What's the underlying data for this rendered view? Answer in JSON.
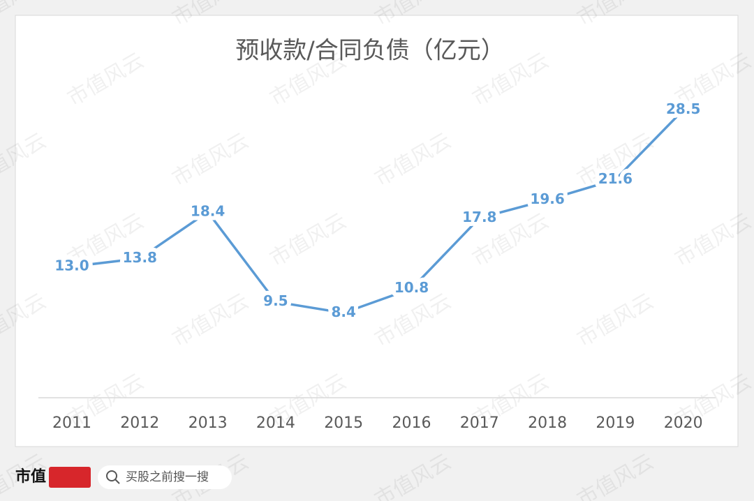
{
  "chart_data": {
    "type": "line",
    "title": "预收款/合同负债（亿元）",
    "categories": [
      "2011",
      "2012",
      "2013",
      "2014",
      "2015",
      "2016",
      "2017",
      "2018",
      "2019",
      "2020"
    ],
    "series": [
      {
        "color": "#5b9bd5",
        "values": [
          13.0,
          13.8,
          18.4,
          9.5,
          8.4,
          10.8,
          17.8,
          19.6,
          21.6,
          28.5
        ],
        "value_labels": [
          "13.0",
          "13.8",
          "18.4",
          "9.5",
          "8.4",
          "10.8",
          "17.8",
          "19.6",
          "21.6",
          "28.5"
        ]
      }
    ],
    "ylim": [
      0,
      32
    ]
  },
  "watermark": "市值风云",
  "footer": {
    "brand": "市值",
    "search": "买股之前搜一搜"
  }
}
